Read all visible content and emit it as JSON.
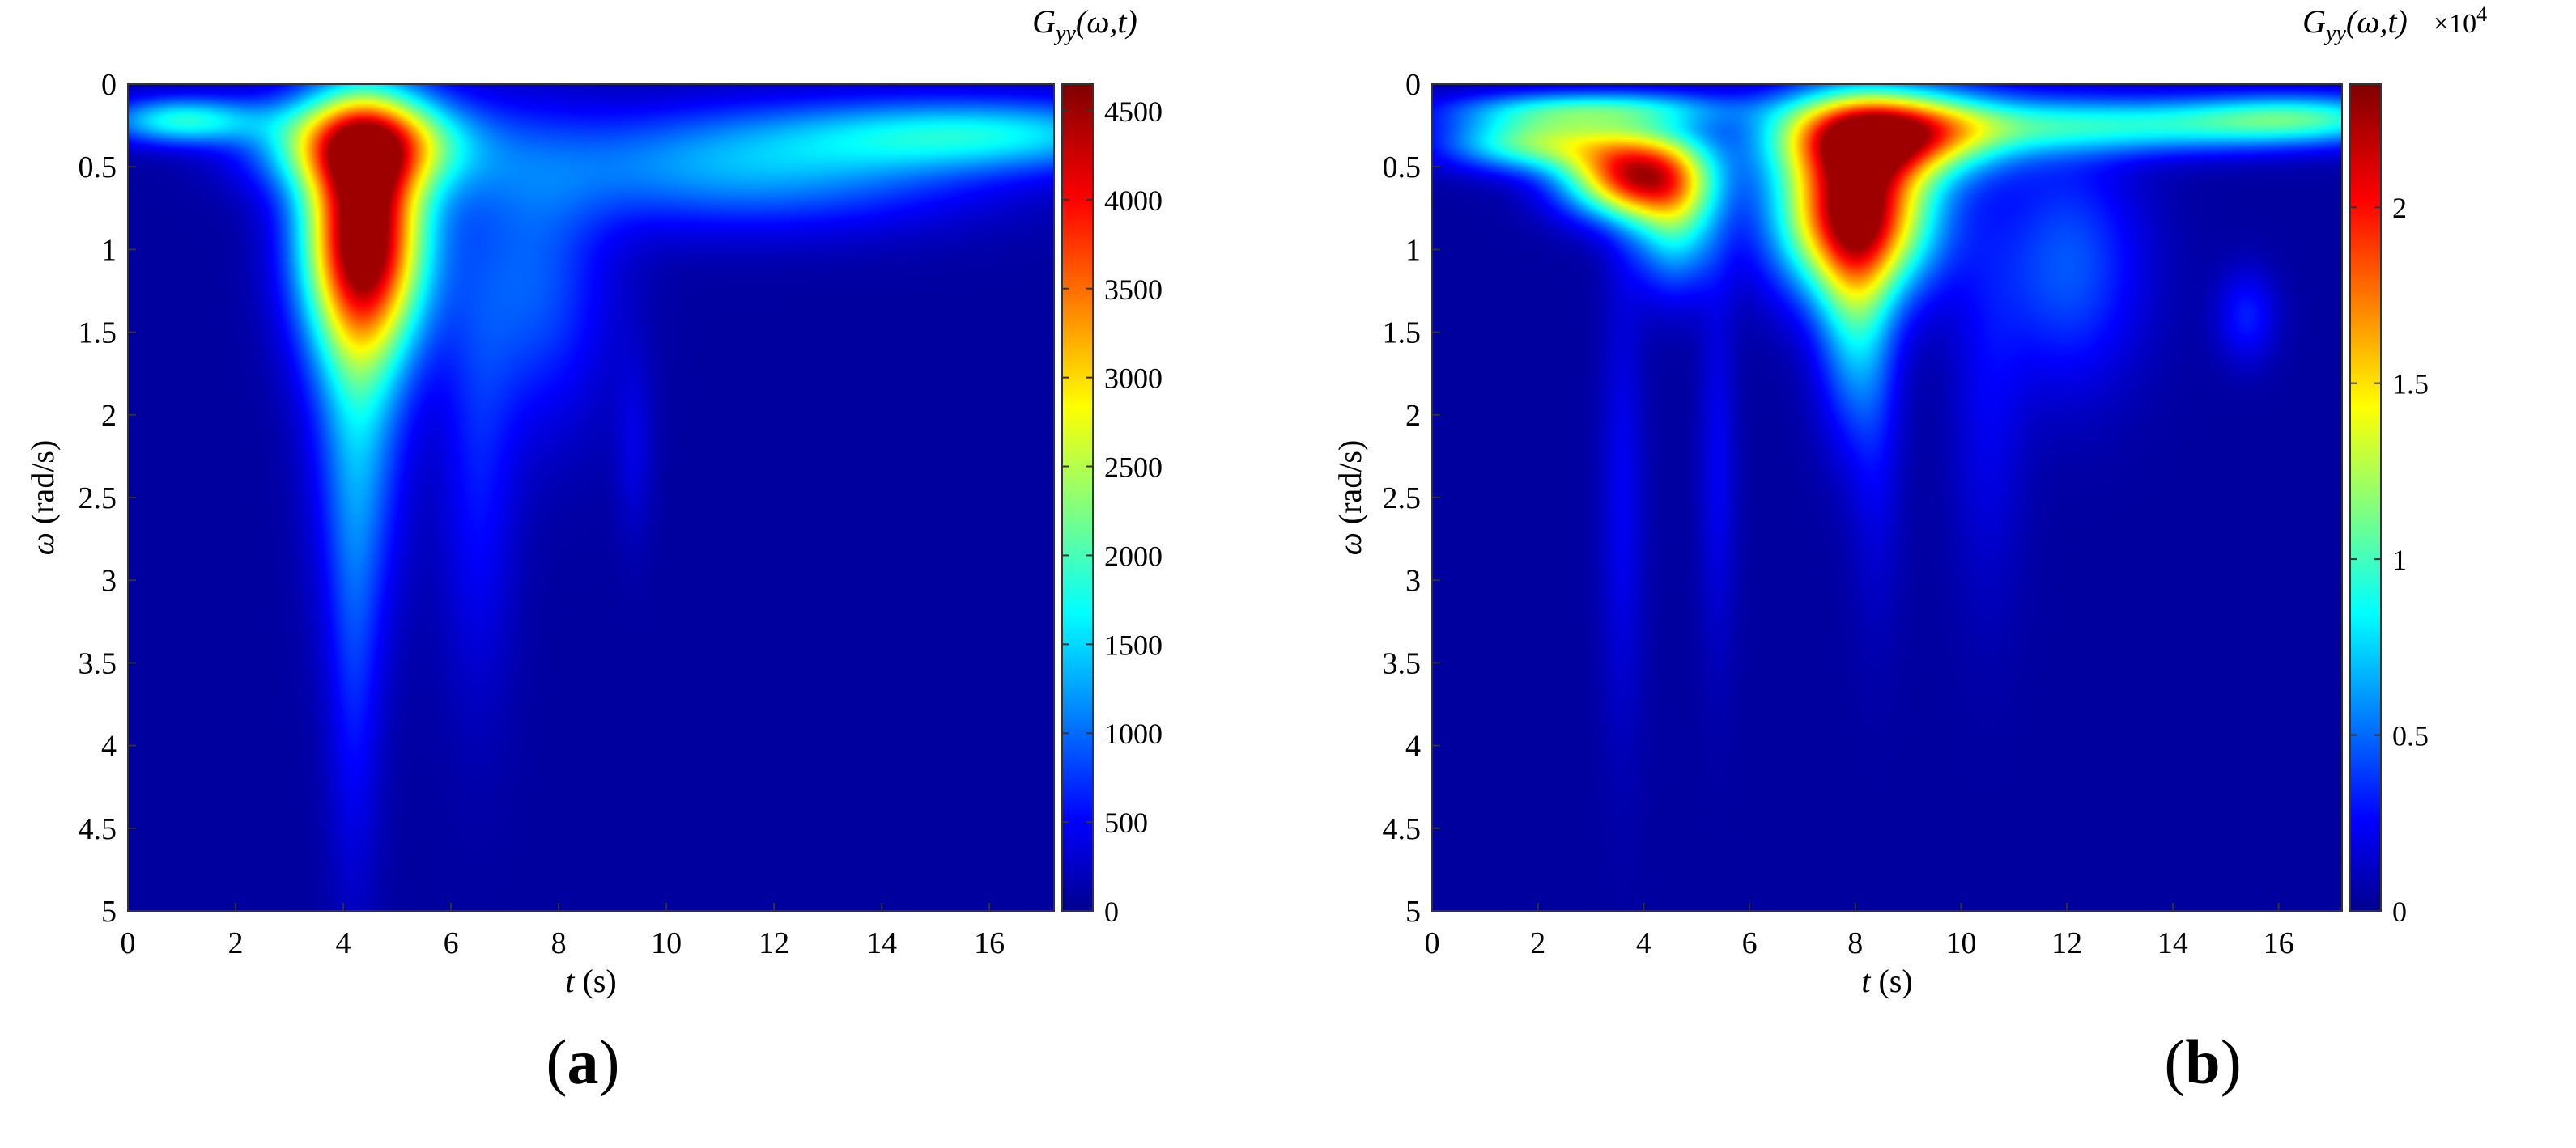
{
  "figure": {
    "panels": [
      {
        "id": "a",
        "label_open": "(",
        "label_letter": "a",
        "label_close": ")",
        "colorbar": {
          "title_base": "G",
          "title_sub": "yy",
          "title_args": "(ω,t)",
          "exponent_text": "",
          "ticks": [
            "0",
            "500",
            "1000",
            "1500",
            "2000",
            "2500",
            "3000",
            "3500",
            "4000",
            "4500"
          ]
        }
      },
      {
        "id": "b",
        "label_open": "(",
        "label_letter": "b",
        "label_close": ")",
        "colorbar": {
          "title_base": "G",
          "title_sub": "yy",
          "title_args": "(ω,t)",
          "exponent_text": "×10",
          "exponent_power": "4",
          "ticks": [
            "0",
            "0.5",
            "1",
            "1.5",
            "2"
          ]
        }
      }
    ]
  },
  "chart_data": [
    {
      "type": "heatmap",
      "panel": "a",
      "title": "",
      "xlabel_symbol": "t",
      "xlabel_unit": "(s)",
      "ylabel_symbol": "ω",
      "ylabel_unit": "(rad/s)",
      "xlim": [
        0,
        17.2
      ],
      "ylim": [
        0,
        5
      ],
      "y_reversed": true,
      "x_ticks": [
        0,
        2,
        4,
        6,
        8,
        10,
        12,
        14,
        16
      ],
      "y_ticks": [
        0,
        0.5,
        1,
        1.5,
        2,
        2.5,
        3,
        3.5,
        4,
        4.5,
        5
      ],
      "y_tick_labels": [
        "0",
        "0.5",
        "1",
        "1.5",
        "2",
        "2.5",
        "3",
        "3.5",
        "4",
        "4.5",
        "5"
      ],
      "colormap": "jet",
      "clim": [
        0,
        4650
      ],
      "colorbar_ticks": [
        0,
        500,
        1000,
        1500,
        2000,
        2500,
        3000,
        3500,
        4000,
        4500
      ],
      "background_color": "#00008f",
      "features": [
        {
          "t": 4.4,
          "omega": 0.9,
          "peak": 4650,
          "t_width": 0.8,
          "omega_width": 0.5,
          "note": "main peak"
        },
        {
          "t": 4.4,
          "omega": 0.35,
          "peak": 2800,
          "t_width": 1.3,
          "omega_width": 0.2
        },
        {
          "t": 4.3,
          "omega": 1.9,
          "peak": 1200,
          "t_width": 0.6,
          "omega_width": 0.9
        },
        {
          "t": 4.2,
          "omega": 3.5,
          "peak": 500,
          "t_width": 0.35,
          "omega_width": 1.0
        },
        {
          "t": 6.5,
          "omega": 2.4,
          "peak": 500,
          "t_width": 0.5,
          "omega_width": 0.9
        },
        {
          "t": 7.5,
          "omega": 1.2,
          "peak": 900,
          "t_width": 1.0,
          "omega_width": 0.6
        },
        {
          "t": 11.5,
          "omega": 0.5,
          "peak": 1300,
          "t_width": 3.0,
          "omega_width": 0.25
        },
        {
          "t": 16.0,
          "omega": 0.3,
          "peak": 1500,
          "t_width": 2.5,
          "omega_width": 0.15
        },
        {
          "t": 1.0,
          "omega": 0.22,
          "peak": 1800,
          "t_width": 1.0,
          "omega_width": 0.1
        },
        {
          "t": 9.4,
          "omega": 2.2,
          "peak": 300,
          "t_width": 0.25,
          "omega_width": 0.4
        }
      ]
    },
    {
      "type": "heatmap",
      "panel": "b",
      "title": "",
      "xlabel_symbol": "t",
      "xlabel_unit": "(s)",
      "ylabel_symbol": "ω",
      "ylabel_unit": "(rad/s)",
      "xlim": [
        0,
        17.2
      ],
      "ylim": [
        0,
        5
      ],
      "y_reversed": true,
      "x_ticks": [
        0,
        2,
        4,
        6,
        8,
        10,
        12,
        14,
        16
      ],
      "y_ticks": [
        0,
        0.5,
        1,
        1.5,
        2,
        2.5,
        3,
        3.5,
        4,
        4.5,
        5
      ],
      "y_tick_labels": [
        "0",
        "0.5",
        "1",
        "1.5",
        "2",
        "2.5",
        "3",
        "3.5",
        "4",
        "4.5",
        "5"
      ],
      "colormap": "jet",
      "clim": [
        0,
        23500
      ],
      "colorbar_ticks": [
        0,
        5000,
        10000,
        15000,
        20000
      ],
      "background_color": "#00008f",
      "features": [
        {
          "t": 8.0,
          "omega": 0.75,
          "peak": 23500,
          "t_width": 1.0,
          "omega_width": 0.35,
          "note": "main peak"
        },
        {
          "t": 8.6,
          "omega": 0.3,
          "peak": 18000,
          "t_width": 1.4,
          "omega_width": 0.18
        },
        {
          "t": 3.8,
          "omega": 0.55,
          "peak": 19500,
          "t_width": 0.9,
          "omega_width": 0.18
        },
        {
          "t": 2.0,
          "omega": 0.35,
          "peak": 11000,
          "t_width": 1.2,
          "omega_width": 0.12
        },
        {
          "t": 4.6,
          "omega": 0.8,
          "peak": 9000,
          "t_width": 0.6,
          "omega_width": 0.3
        },
        {
          "t": 8.0,
          "omega": 1.4,
          "peak": 7000,
          "t_width": 0.5,
          "omega_width": 0.5
        },
        {
          "t": 3.0,
          "omega": 0.15,
          "peak": 8000,
          "t_width": 1.8,
          "omega_width": 0.08
        },
        {
          "t": 12.0,
          "omega": 1.1,
          "peak": 4500,
          "t_width": 1.0,
          "omega_width": 0.5
        },
        {
          "t": 13.0,
          "omega": 0.25,
          "peak": 8500,
          "t_width": 3.0,
          "omega_width": 0.12
        },
        {
          "t": 16.5,
          "omega": 0.2,
          "peak": 7000,
          "t_width": 1.5,
          "omega_width": 0.1
        },
        {
          "t": 3.6,
          "omega": 2.5,
          "peak": 2000,
          "t_width": 0.3,
          "omega_width": 1.0
        },
        {
          "t": 5.4,
          "omega": 2.3,
          "peak": 2000,
          "t_width": 0.25,
          "omega_width": 0.8
        },
        {
          "t": 8.4,
          "omega": 2.3,
          "peak": 1600,
          "t_width": 0.35,
          "omega_width": 0.7
        },
        {
          "t": 10.5,
          "omega": 2.0,
          "peak": 1800,
          "t_width": 0.5,
          "omega_width": 0.8
        },
        {
          "t": 15.4,
          "omega": 1.4,
          "peak": 3000,
          "t_width": 0.4,
          "omega_width": 0.2
        }
      ]
    }
  ]
}
